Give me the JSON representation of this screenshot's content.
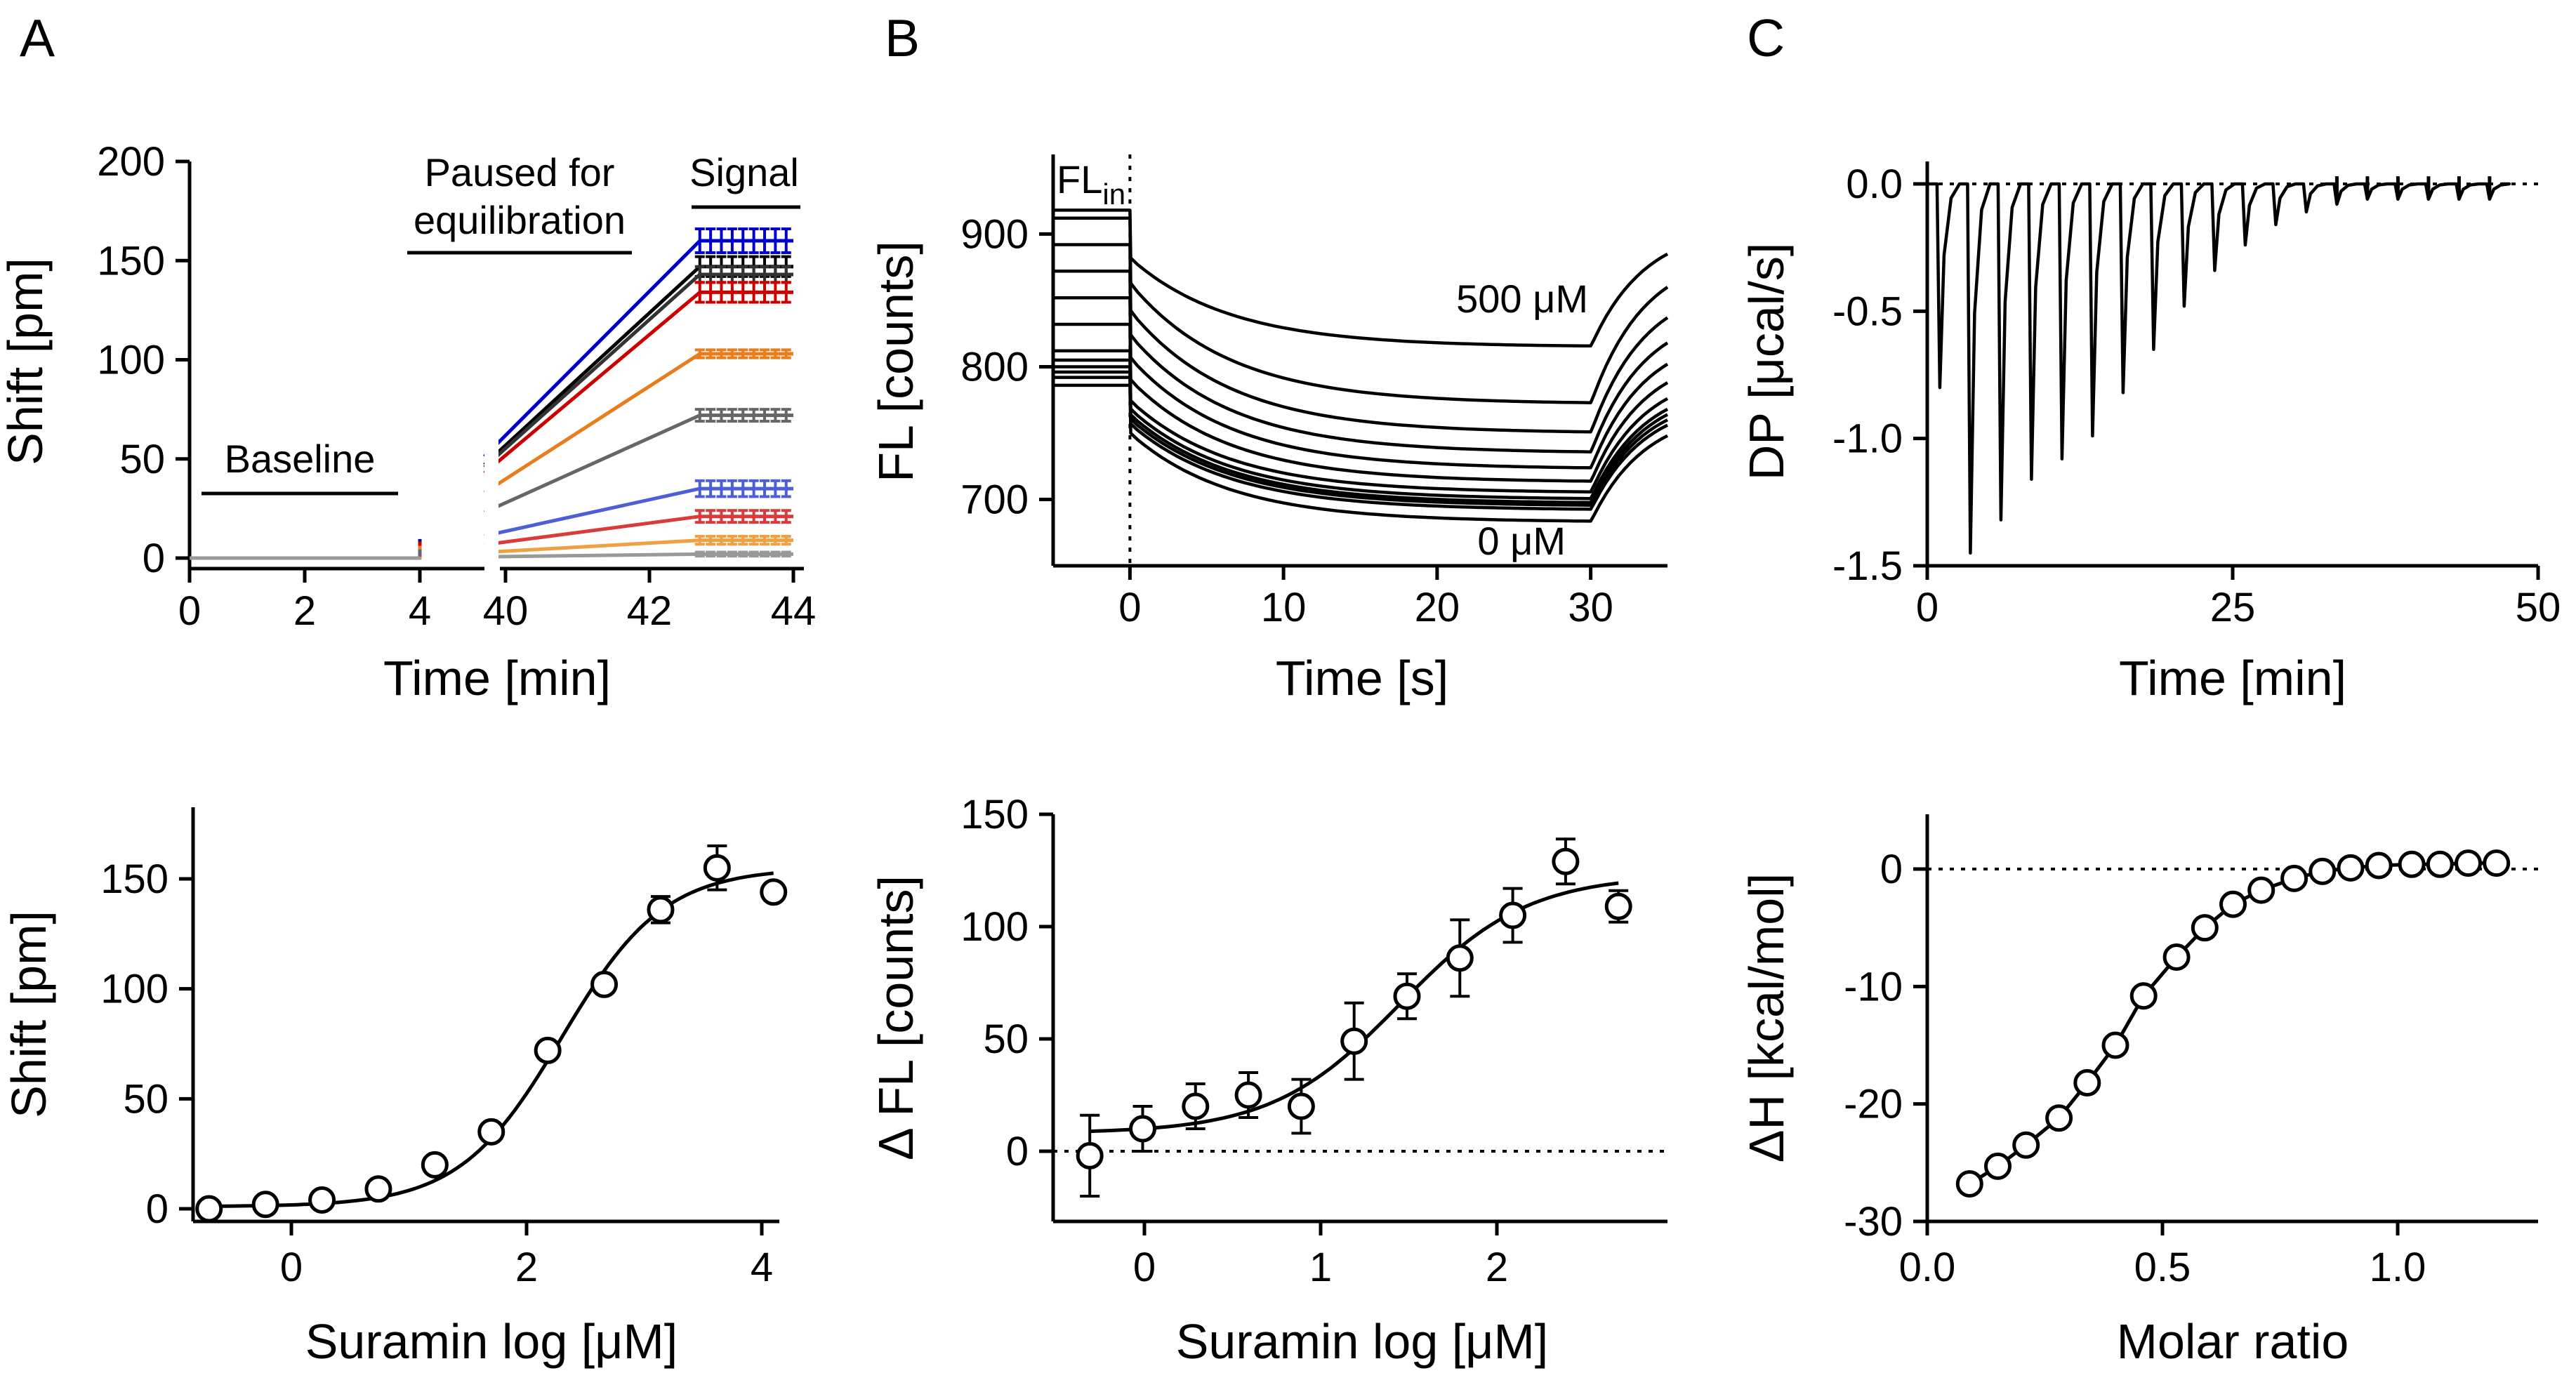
{
  "panel_labels": [
    "A",
    "B",
    "C"
  ],
  "chart_data": [
    {
      "id": "A_top",
      "type": "line",
      "title": "",
      "xlabel": "Time [min]",
      "ylabel": "Shift [pm]",
      "xlim": [
        0,
        44
      ],
      "ylim": [
        0,
        200
      ],
      "axis_break": "between 4 and 40 min",
      "xticks": [
        "0",
        "2",
        "4",
        "40",
        "42",
        "44"
      ],
      "yticks": [
        "0",
        "50",
        "100",
        "150",
        "200"
      ],
      "annotations": {
        "baseline": "Baseline",
        "paused_line1": "Paused for",
        "paused_line2": "equilibration",
        "signal": "Signal"
      },
      "series": [
        {
          "name": "s1",
          "color": "#0000cc",
          "plateau": 160,
          "err": 6
        },
        {
          "name": "s2",
          "color": "#000000",
          "plateau": 147,
          "err": 5
        },
        {
          "name": "s3",
          "color": "#333333",
          "plateau": 143,
          "err": 4
        },
        {
          "name": "s4",
          "color": "#cc0000",
          "plateau": 134,
          "err": 5
        },
        {
          "name": "s5",
          "color": "#e87d1e",
          "plateau": 103,
          "err": 2
        },
        {
          "name": "s6",
          "color": "#666666",
          "plateau": 72,
          "err": 3
        },
        {
          "name": "s7",
          "color": "#4d5fd6",
          "plateau": 35,
          "err": 4
        },
        {
          "name": "s8",
          "color": "#d93b3b",
          "plateau": 21,
          "err": 3
        },
        {
          "name": "s9",
          "color": "#f0a040",
          "plateau": 9,
          "err": 2
        },
        {
          "name": "s10",
          "color": "#999999",
          "plateau": 2,
          "err": 1
        }
      ]
    },
    {
      "id": "B_top",
      "type": "line",
      "title": "",
      "xlabel": "Time [s]",
      "ylabel": "FL [counts]",
      "xlim": [
        -5,
        35
      ],
      "ylim": [
        650,
        960
      ],
      "xticks": [
        "0",
        "10",
        "20",
        "30"
      ],
      "yticks": [
        "700",
        "800",
        "900"
      ],
      "annotations": {
        "fl_in": "FL",
        "fl_in_sub": "in",
        "high": "500 μM",
        "low": "0 μM"
      },
      "series": [
        {
          "pre": 918,
          "plateau": 815,
          "final": 885
        },
        {
          "pre": 912,
          "plateau": 772,
          "final": 860
        },
        {
          "pre": 892,
          "plateau": 750,
          "final": 837
        },
        {
          "pre": 872,
          "plateau": 735,
          "final": 818
        },
        {
          "pre": 852,
          "plateau": 723,
          "final": 802
        },
        {
          "pre": 832,
          "plateau": 713,
          "final": 788
        },
        {
          "pre": 812,
          "plateau": 705,
          "final": 776
        },
        {
          "pre": 805,
          "plateau": 700,
          "final": 768
        },
        {
          "pre": 800,
          "plateau": 697,
          "final": 764
        },
        {
          "pre": 796,
          "plateau": 695,
          "final": 760
        },
        {
          "pre": 792,
          "plateau": 692,
          "final": 756
        },
        {
          "pre": 786,
          "plateau": 683,
          "final": 748
        }
      ]
    },
    {
      "id": "C_top",
      "type": "line",
      "title": "",
      "xlabel": "Time [min]",
      "ylabel": "DP [μcal/s]",
      "xlim": [
        0,
        50
      ],
      "ylim": [
        -1.5,
        0.05
      ],
      "xticks": [
        "0",
        "25",
        "50"
      ],
      "yticks": [
        "0.0",
        "-0.5",
        "-1.0",
        "-1.5"
      ],
      "injections": [
        {
          "t": 0.8,
          "peak": -0.8
        },
        {
          "t": 3.3,
          "peak": -1.45
        },
        {
          "t": 5.8,
          "peak": -1.32
        },
        {
          "t": 8.3,
          "peak": -1.16
        },
        {
          "t": 10.8,
          "peak": -1.08
        },
        {
          "t": 13.3,
          "peak": -0.99
        },
        {
          "t": 15.8,
          "peak": -0.82
        },
        {
          "t": 18.3,
          "peak": -0.65
        },
        {
          "t": 20.8,
          "peak": -0.48
        },
        {
          "t": 23.3,
          "peak": -0.34
        },
        {
          "t": 25.8,
          "peak": -0.24
        },
        {
          "t": 28.3,
          "peak": -0.16
        },
        {
          "t": 30.8,
          "peak": -0.11
        },
        {
          "t": 33.3,
          "peak": -0.08
        },
        {
          "t": 35.8,
          "peak": -0.06
        },
        {
          "t": 38.3,
          "peak": -0.06
        },
        {
          "t": 40.8,
          "peak": -0.06
        },
        {
          "t": 43.3,
          "peak": -0.06
        },
        {
          "t": 45.8,
          "peak": -0.06
        }
      ]
    },
    {
      "id": "A_bottom",
      "type": "scatter",
      "xlabel": "Suramin log [μM]",
      "ylabel": "Shift [pm]",
      "xlim": [
        -0.8,
        4.3
      ],
      "ylim": [
        0,
        180
      ],
      "xticks": [
        "0",
        "2",
        "4"
      ],
      "yticks": [
        "0",
        "50",
        "100",
        "150"
      ],
      "points": [
        {
          "x": -0.7,
          "y": 0,
          "err": 0
        },
        {
          "x": -0.22,
          "y": 2,
          "err": 0
        },
        {
          "x": 0.26,
          "y": 4,
          "err": 0
        },
        {
          "x": 0.74,
          "y": 9,
          "err": 0
        },
        {
          "x": 1.22,
          "y": 20,
          "err": 0
        },
        {
          "x": 1.7,
          "y": 35,
          "err": 0
        },
        {
          "x": 2.18,
          "y": 72,
          "err": 0
        },
        {
          "x": 2.66,
          "y": 102,
          "err": 0
        },
        {
          "x": 3.14,
          "y": 136,
          "err": 6
        },
        {
          "x": 3.62,
          "y": 155,
          "err": 10
        },
        {
          "x": 4.1,
          "y": 144,
          "err": 0
        }
      ],
      "fit": {
        "bottom": 1,
        "top": 155,
        "logEC50": 2.3,
        "hill": 1.0
      }
    },
    {
      "id": "B_bottom",
      "type": "scatter",
      "xlabel": "Suramin log [μM]",
      "ylabel": "Δ FL [counts]",
      "xlim": [
        -0.5,
        2.9
      ],
      "ylim": [
        -30,
        150
      ],
      "xticks": [
        "0",
        "1",
        "2"
      ],
      "yticks": [
        "0",
        "50",
        "100",
        "150"
      ],
      "points": [
        {
          "x": -0.31,
          "y": -2,
          "err": 18
        },
        {
          "x": -0.01,
          "y": 10,
          "err": 10
        },
        {
          "x": 0.29,
          "y": 20,
          "err": 10
        },
        {
          "x": 0.59,
          "y": 25,
          "err": 10
        },
        {
          "x": 0.89,
          "y": 20,
          "err": 12
        },
        {
          "x": 1.19,
          "y": 49,
          "err": 17
        },
        {
          "x": 1.49,
          "y": 69,
          "err": 10
        },
        {
          "x": 1.79,
          "y": 86,
          "err": 17
        },
        {
          "x": 2.09,
          "y": 105,
          "err": 12
        },
        {
          "x": 2.39,
          "y": 129,
          "err": 10
        },
        {
          "x": 2.69,
          "y": 109,
          "err": 7
        }
      ],
      "fit": {
        "bottom": 8,
        "top": 123,
        "logEC50": 1.45,
        "hill": 1.2
      }
    },
    {
      "id": "C_bottom",
      "type": "scatter",
      "xlabel": "Molar ratio",
      "ylabel": "ΔH [kcal/mol]",
      "xlim": [
        0,
        1.3
      ],
      "ylim": [
        -30,
        5
      ],
      "xticks": [
        "0.0",
        "0.5",
        "1.0"
      ],
      "yticks": [
        "0",
        "-10",
        "-20",
        "-30"
      ],
      "points": [
        {
          "x": 0.09,
          "y": -26.8
        },
        {
          "x": 0.15,
          "y": -25.3
        },
        {
          "x": 0.21,
          "y": -23.5
        },
        {
          "x": 0.28,
          "y": -21.2
        },
        {
          "x": 0.34,
          "y": -18.2
        },
        {
          "x": 0.4,
          "y": -15.0
        },
        {
          "x": 0.46,
          "y": -10.8
        },
        {
          "x": 0.53,
          "y": -7.5
        },
        {
          "x": 0.59,
          "y": -5.0
        },
        {
          "x": 0.65,
          "y": -3.0
        },
        {
          "x": 0.71,
          "y": -1.8
        },
        {
          "x": 0.78,
          "y": -0.8
        },
        {
          "x": 0.84,
          "y": -0.2
        },
        {
          "x": 0.9,
          "y": 0.1
        },
        {
          "x": 0.96,
          "y": 0.3
        },
        {
          "x": 1.03,
          "y": 0.4
        },
        {
          "x": 1.09,
          "y": 0.4
        },
        {
          "x": 1.15,
          "y": 0.5
        },
        {
          "x": 1.21,
          "y": 0.5
        }
      ]
    }
  ]
}
